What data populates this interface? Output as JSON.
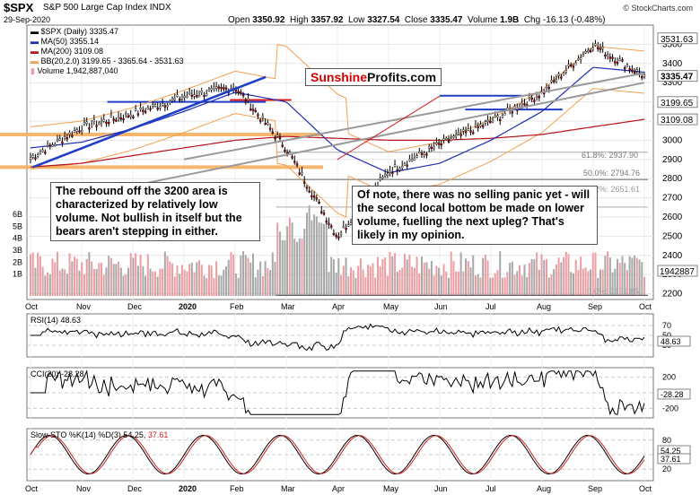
{
  "header": {
    "symbol": "$SPX",
    "description": "S&P 500 Large Cap Index",
    "exchange": "INDX",
    "date": "29-Sep-2020",
    "open_label": "Open",
    "open": "3350.92",
    "high_label": "High",
    "high": "3357.92",
    "low_label": "Low",
    "low": "3327.54",
    "close_label": "Close",
    "close": "3335.47",
    "volume_label": "Volume",
    "volume": "1.9B",
    "chg_label": "Chg",
    "chg": "-16.13 (-0.48%)",
    "credit": "© StockCharts.com"
  },
  "legend": {
    "price": "$SPX (Daily) 3335.47",
    "ma50": "MA(50) 3355.14",
    "ma200": "MA(200) 3109.08",
    "bb": "BB(20,2.0) 3199.65 - 3365.64 - 3531.63",
    "volume": "Volume 1,942,887,040"
  },
  "colors": {
    "price": "#000000",
    "ma50": "#1f2db5",
    "ma200": "#b5121b",
    "bb": "#f0a050",
    "volume_up": "#ec9ea3",
    "volume_down": "#a8a8a8",
    "trend_blue": "#1e3ec8",
    "channel_gray": "#9a9a9a",
    "support_orange": "#f5b060",
    "fib_line": "#7a7a7a",
    "horizontal_red": "#d4181c",
    "cci_fill_pos": "#4e8a4e",
    "cci_fill_neg": "#8a4e4e",
    "sto_k": "#000000",
    "sto_d": "#d02020"
  },
  "brand": {
    "part1": "Sunshine",
    "part2": "Profits.com"
  },
  "annotations": {
    "left_note": "The rebound off the 3200 area is characterized by relatively low volume. Not bullish in itself but the bears aren't stepping in either.",
    "right_note": "Of note, there was no selling panic yet - will the second local bottom be made on lower volume, fuelling the next upleg? That's likely in my opinion."
  },
  "fib_labels": {
    "f618": "61.8%: 2937.90",
    "f500": "50.0%: 2794.76",
    "f382": "38.2%: 2651.61",
    "f0": "0.0%: 2191.86"
  },
  "price_tags": {
    "bb_upper": "3531.63",
    "close": "3335.47",
    "bb_lower": "3199.65",
    "ma200": "3109.08",
    "volume": "1942887"
  },
  "indicators": {
    "rsi": {
      "label": "RSI(14) 48.63",
      "value": "48.63",
      "ticks": [
        "70",
        "50",
        "30"
      ]
    },
    "cci": {
      "label": "CCI(20) -28.28",
      "value": "-28.28",
      "ticks": [
        "200",
        "0",
        "-200"
      ]
    },
    "sto": {
      "label_prefix": "Slow STO %K(14) %D(3) 54.25,",
      "label_d": "37.61",
      "k": "54.25",
      "d": "37.61",
      "ticks": [
        "80",
        "50",
        "20"
      ]
    }
  },
  "x_axis_labels": [
    "Oct",
    "Nov",
    "Dec",
    "2020",
    "Feb",
    "Mar",
    "Apr",
    "May",
    "Jun",
    "Jul",
    "Aug",
    "Sep",
    "Oct"
  ],
  "chart_data": {
    "type": "line",
    "title": "$SPX S&P 500 Large Cap Index INDX",
    "y_ticks": [
      "3500",
      "3400",
      "3300",
      "3200",
      "3100",
      "3000",
      "2900",
      "2800",
      "2700",
      "2600",
      "2500",
      "2400",
      "2300",
      "2200"
    ],
    "volume_ticks": [
      "6B",
      "5B",
      "4B",
      "3B",
      "2B",
      "1B"
    ],
    "ylim": [
      2170,
      3600
    ],
    "x": [
      "Oct",
      "Nov",
      "Dec",
      "2020",
      "Feb",
      "Mar",
      "Apr",
      "May",
      "Jun",
      "Jul",
      "Aug",
      "Sep",
      "Oct"
    ],
    "series": [
      {
        "name": "$SPX (Daily)",
        "values": [
          2910,
          3070,
          3140,
          3230,
          3280,
          2960,
          2500,
          2840,
          2980,
          3100,
          3250,
          3500,
          3335
        ]
      },
      {
        "name": "MA(50)",
        "values": [
          2960,
          2990,
          3060,
          3150,
          3250,
          3200,
          2950,
          2830,
          2880,
          3000,
          3150,
          3380,
          3355
        ]
      },
      {
        "name": "MA(200)",
        "values": [
          2860,
          2880,
          2920,
          2960,
          3000,
          3020,
          3010,
          3000,
          3000,
          3010,
          3030,
          3070,
          3109
        ]
      }
    ]
  }
}
